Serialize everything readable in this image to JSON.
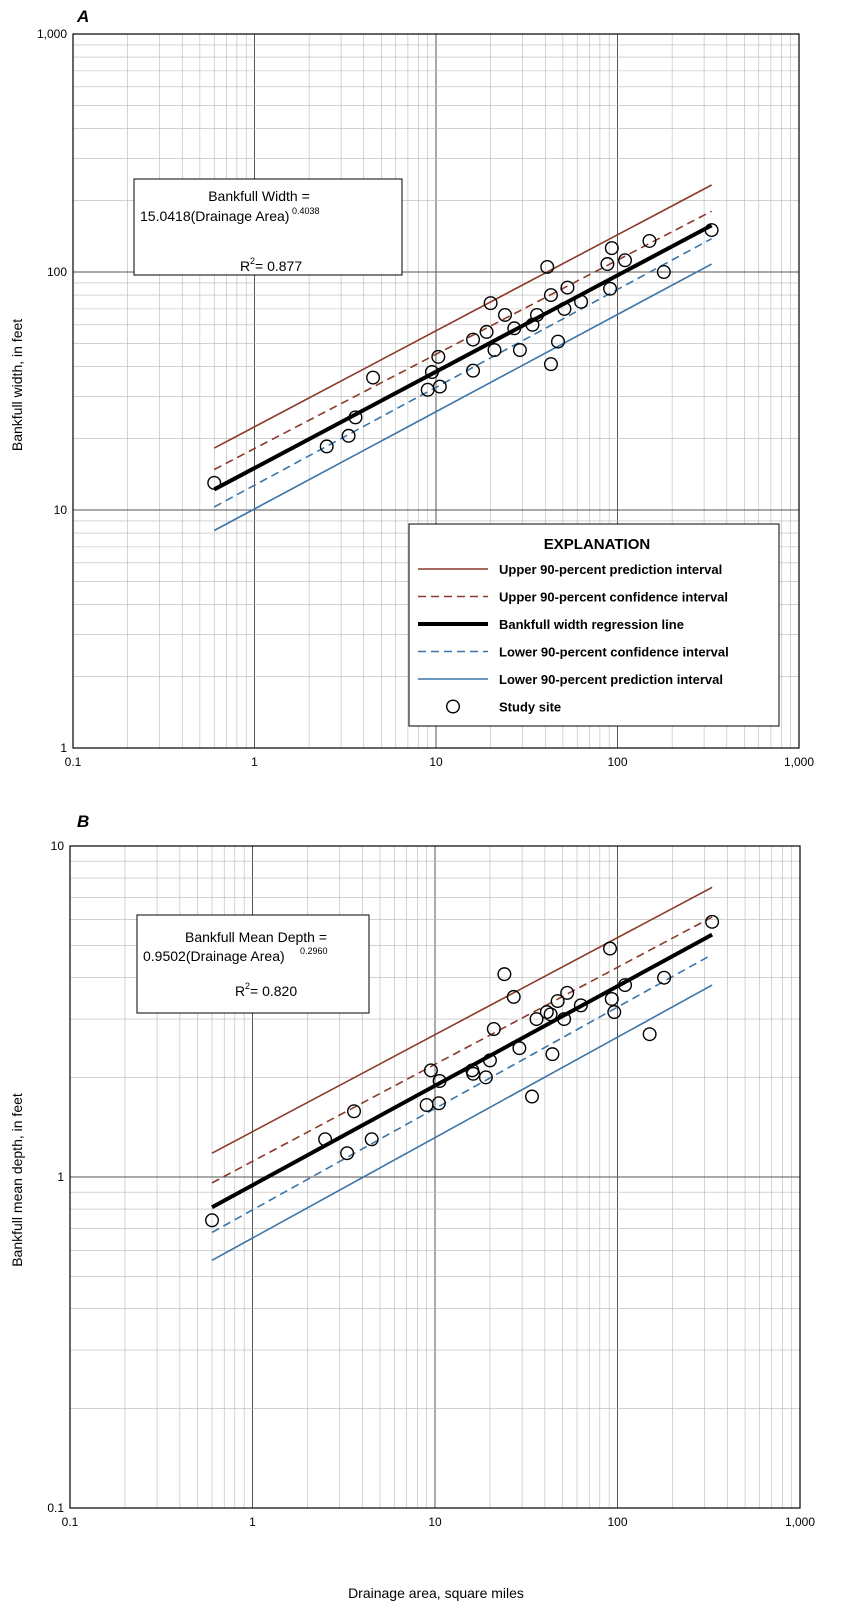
{
  "chart_data": [
    {
      "panel": "A",
      "type": "scatter",
      "xscale": "log",
      "yscale": "log",
      "xlim": [
        0.1,
        1000
      ],
      "ylim": [
        1,
        1000
      ],
      "xticks": [
        "0.1",
        "1",
        "10",
        "100",
        "1,000"
      ],
      "yticks": [
        "1",
        "10",
        "100",
        "1,000"
      ],
      "xlabel": "",
      "ylabel": "Bankfull width, in feet",
      "grid": true,
      "equation": {
        "line1": "Bankfull Width =",
        "line2": "15.0418(Drainage Area)",
        "exponent": "0.4038",
        "r2_prefix": "R",
        "r2_sup": "2",
        "r2_value": " = 0.877"
      },
      "legend": {
        "title": "EXPLANATION",
        "placement": "lower-right",
        "items": [
          {
            "label": "Upper 90-percent prediction interval",
            "color": "#8b3a2a",
            "dash": "solid",
            "width": 1.6
          },
          {
            "label": "Upper 90-percent confidence interval",
            "color": "#8b3a2a",
            "dash": "dashed",
            "width": 1.6
          },
          {
            "label": "Bankfull width regression line",
            "color": "#000000",
            "dash": "solid",
            "width": 4
          },
          {
            "label": "Lower 90-percent confidence interval",
            "color": "#3a75a8",
            "dash": "dashed",
            "width": 1.6
          },
          {
            "label": "Lower 90-percent prediction interval",
            "color": "#3a75a8",
            "dash": "solid",
            "width": 1.6
          },
          {
            "label": "Study site",
            "marker": "circle"
          }
        ]
      },
      "series": [
        {
          "key": "upper_pi",
          "color": "#8b3a2a",
          "dash": "solid",
          "width": 1.6,
          "points": [
            [
              0.6,
              18.2
            ],
            [
              330,
              232
            ]
          ]
        },
        {
          "key": "upper_ci",
          "color": "#8b3a2a",
          "dash": "dashed",
          "width": 1.6,
          "points": [
            [
              0.6,
              14.8
            ],
            [
              330,
              180
            ]
          ]
        },
        {
          "key": "regression",
          "color": "#000000",
          "dash": "solid",
          "width": 4,
          "points": [
            [
              0.6,
              12.2
            ],
            [
              330,
              157
            ]
          ]
        },
        {
          "key": "lower_ci",
          "color": "#3a75a8",
          "dash": "dashed",
          "width": 1.6,
          "points": [
            [
              0.6,
              10.3
            ],
            [
              330,
              138
            ]
          ]
        },
        {
          "key": "lower_pi",
          "color": "#3a75a8",
          "dash": "solid",
          "width": 1.6,
          "points": [
            [
              0.6,
              8.2
            ],
            [
              330,
              108
            ]
          ]
        }
      ],
      "points": [
        [
          0.6,
          13
        ],
        [
          2.5,
          18.5
        ],
        [
          3.3,
          20.5
        ],
        [
          3.6,
          24.5
        ],
        [
          4.5,
          36
        ],
        [
          9,
          32
        ],
        [
          9.5,
          38
        ],
        [
          10.3,
          44
        ],
        [
          10.5,
          33
        ],
        [
          16,
          38.5
        ],
        [
          16,
          52
        ],
        [
          19,
          56
        ],
        [
          20,
          74
        ],
        [
          21,
          47
        ],
        [
          24,
          66
        ],
        [
          27,
          58
        ],
        [
          29,
          47
        ],
        [
          34,
          60
        ],
        [
          36,
          66
        ],
        [
          41,
          105
        ],
        [
          43,
          41
        ],
        [
          43,
          80
        ],
        [
          47,
          51
        ],
        [
          51,
          70
        ],
        [
          53,
          86
        ],
        [
          63,
          75
        ],
        [
          88,
          108
        ],
        [
          91,
          85
        ],
        [
          93,
          126
        ],
        [
          110,
          112
        ],
        [
          150,
          135
        ],
        [
          180,
          100
        ],
        [
          330,
          150
        ]
      ]
    },
    {
      "panel": "B",
      "type": "scatter",
      "xscale": "log",
      "yscale": "log",
      "xlim": [
        0.1,
        1000
      ],
      "ylim": [
        0.1,
        10
      ],
      "xticks": [
        "0.1",
        "1",
        "10",
        "100",
        "1,000"
      ],
      "yticks": [
        "0.1",
        "1",
        "10"
      ],
      "xlabel": "Drainage area, square miles",
      "ylabel": "Bankfull mean depth, in feet",
      "grid": true,
      "equation": {
        "line1": "Bankfull Mean Depth =",
        "line2": "0.9502(Drainage Area)",
        "exponent": "0.2960",
        "r2_prefix": "R",
        "r2_sup": "2",
        "r2_value": " = 0.820"
      },
      "series": [
        {
          "key": "upper_pi",
          "color": "#8b3a2a",
          "dash": "solid",
          "width": 1.6,
          "points": [
            [
              0.6,
              1.18
            ],
            [
              330,
              7.5
            ]
          ]
        },
        {
          "key": "upper_ci",
          "color": "#8b3a2a",
          "dash": "dashed",
          "width": 1.6,
          "points": [
            [
              0.6,
              0.96
            ],
            [
              330,
              6.1
            ]
          ]
        },
        {
          "key": "regression",
          "color": "#000000",
          "dash": "solid",
          "width": 4,
          "points": [
            [
              0.6,
              0.81
            ],
            [
              330,
              5.4
            ]
          ]
        },
        {
          "key": "lower_ci",
          "color": "#3a75a8",
          "dash": "dashed",
          "width": 1.6,
          "points": [
            [
              0.6,
              0.68
            ],
            [
              330,
              4.7
            ]
          ]
        },
        {
          "key": "lower_pi",
          "color": "#3a75a8",
          "dash": "solid",
          "width": 1.6,
          "points": [
            [
              0.6,
              0.56
            ],
            [
              330,
              3.8
            ]
          ]
        }
      ],
      "points": [
        [
          0.6,
          0.74
        ],
        [
          2.5,
          1.3
        ],
        [
          3.3,
          1.18
        ],
        [
          3.6,
          1.58
        ],
        [
          4.5,
          1.3
        ],
        [
          9,
          1.65
        ],
        [
          9.5,
          2.1
        ],
        [
          10.5,
          1.67
        ],
        [
          10.6,
          1.95
        ],
        [
          16,
          2.1
        ],
        [
          16.2,
          2.05
        ],
        [
          19,
          2.0
        ],
        [
          20,
          2.25
        ],
        [
          21,
          2.8
        ],
        [
          24,
          4.1
        ],
        [
          27,
          3.5
        ],
        [
          29,
          2.45
        ],
        [
          34,
          1.75
        ],
        [
          36,
          3.0
        ],
        [
          41,
          3.15
        ],
        [
          43,
          3.1
        ],
        [
          44,
          2.35
        ],
        [
          47,
          3.4
        ],
        [
          51,
          3.0
        ],
        [
          53,
          3.6
        ],
        [
          63,
          3.3
        ],
        [
          91,
          4.9
        ],
        [
          93,
          3.45
        ],
        [
          96,
          3.15
        ],
        [
          110,
          3.8
        ],
        [
          150,
          2.7
        ],
        [
          180,
          4.0
        ],
        [
          330,
          5.9
        ]
      ]
    }
  ]
}
